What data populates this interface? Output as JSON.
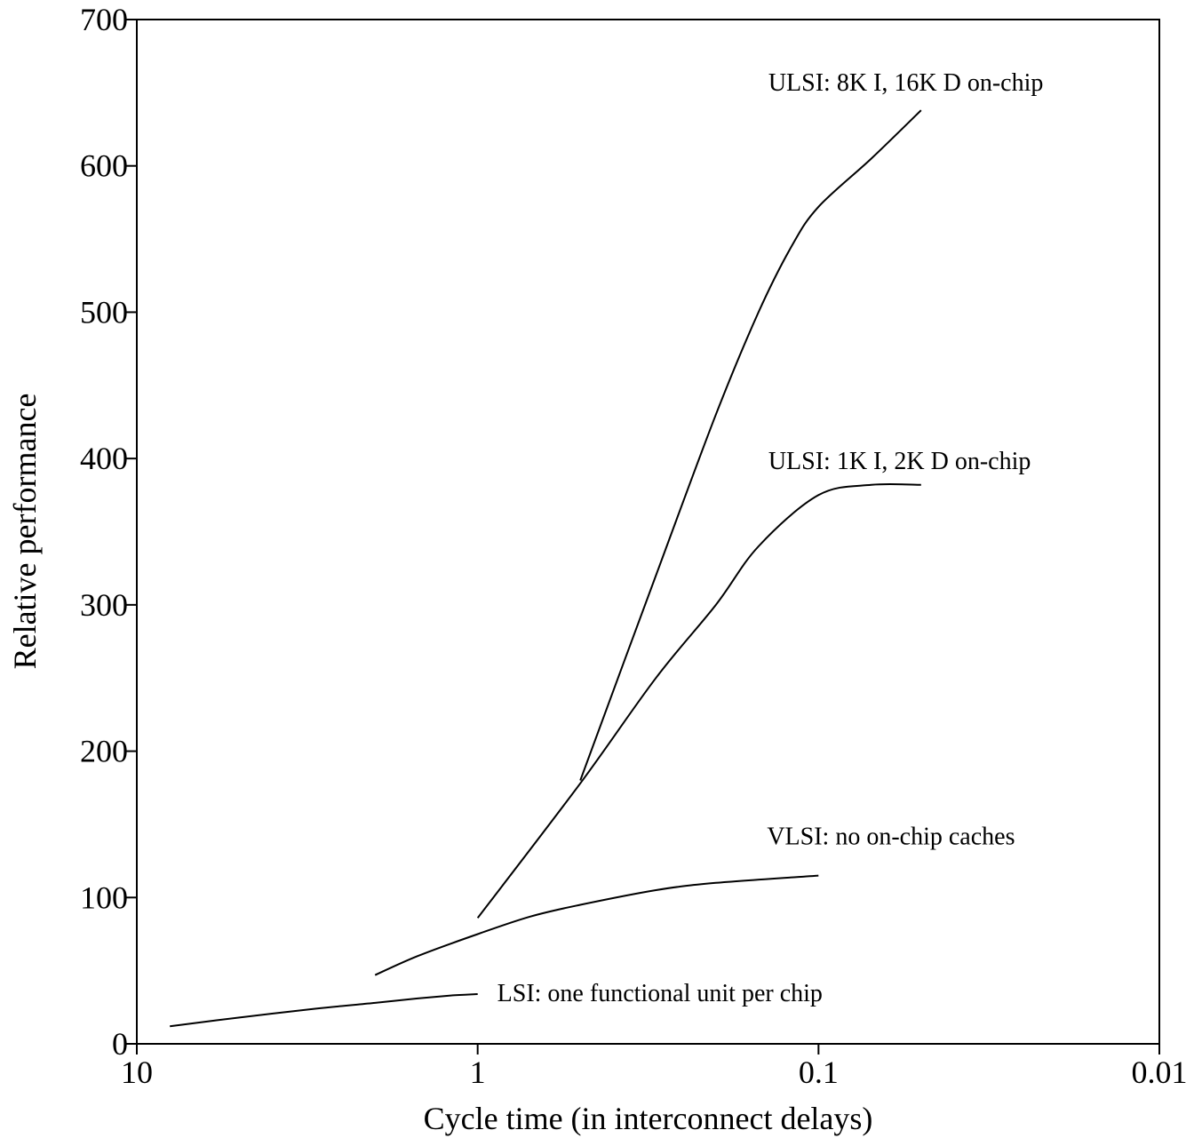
{
  "chart_data": {
    "type": "line",
    "title": "",
    "xlabel": "Cycle time (in interconnect delays)",
    "ylabel": "Relative performance",
    "x_scale": "log",
    "x_reversed": true,
    "xlim": [
      10,
      0.01
    ],
    "ylim": [
      0,
      700
    ],
    "x_ticks": [
      10,
      1,
      0.1,
      0.01
    ],
    "x_tick_labels": [
      "10",
      "1",
      "0.1",
      "0.01"
    ],
    "y_ticks": [
      0,
      100,
      200,
      300,
      400,
      500,
      600,
      700
    ],
    "y_tick_labels": [
      "0",
      "100",
      "200",
      "300",
      "400",
      "500",
      "600",
      "700"
    ],
    "grid": false,
    "legend": "none",
    "series": [
      {
        "name": "LSI: one functional unit per chip",
        "x": [
          8.0,
          5.0,
          3.0,
          2.0,
          1.5,
          1.2,
          1.0
        ],
        "y": [
          12,
          18,
          24,
          28,
          31,
          33,
          34
        ]
      },
      {
        "name": "VLSI: no on-chip caches",
        "x": [
          2.0,
          1.5,
          1.0,
          0.7,
          0.5,
          0.3,
          0.2,
          0.1
        ],
        "y": [
          47,
          60,
          75,
          87,
          95,
          105,
          110,
          115
        ]
      },
      {
        "name": "ULSI: 1K I, 2K D on-chip",
        "x": [
          1.0,
          0.5,
          0.3,
          0.2,
          0.15,
          0.1,
          0.07,
          0.05
        ],
        "y": [
          86,
          178,
          250,
          300,
          340,
          375,
          382,
          382
        ]
      },
      {
        "name": "ULSI: 8K I, 16K D on-chip",
        "x": [
          0.5,
          0.3,
          0.2,
          0.15,
          0.12,
          0.1,
          0.07,
          0.05
        ],
        "y": [
          180,
          320,
          430,
          500,
          545,
          572,
          605,
          638
        ]
      }
    ]
  }
}
